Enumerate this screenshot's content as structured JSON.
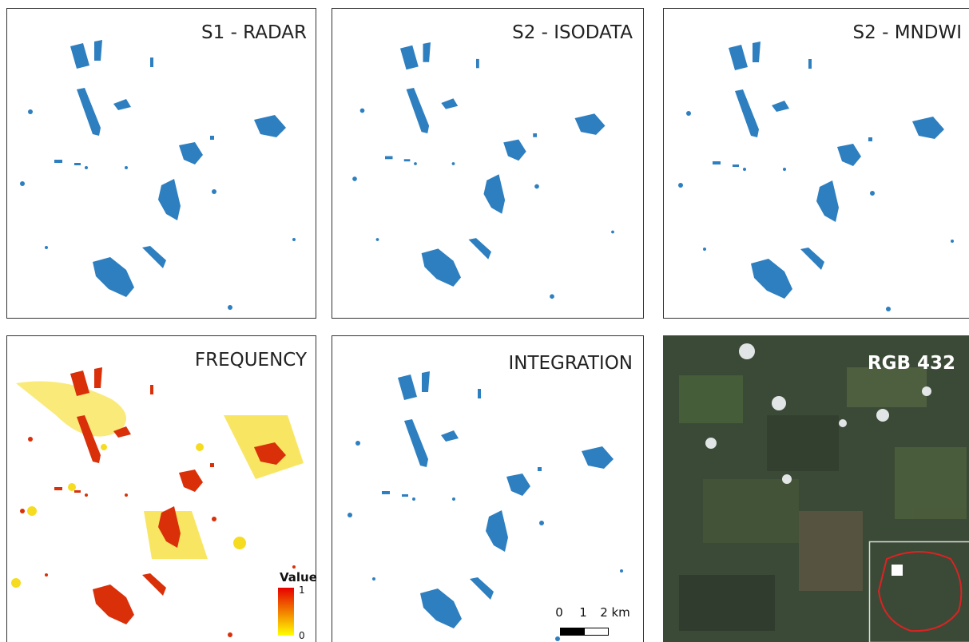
{
  "panels": [
    {
      "title": "S1 - RADAR"
    },
    {
      "title": "S2 - ISODATA"
    },
    {
      "title": "S2 - MNDWI"
    },
    {
      "title": "FREQUENCY"
    },
    {
      "title": "INTEGRATION"
    },
    {
      "title": "RGB 432"
    }
  ],
  "legend": {
    "title": "Value",
    "max": 1,
    "min": 0
  },
  "scale_bar": {
    "labels": [
      "0",
      "1",
      "2 km"
    ]
  }
}
